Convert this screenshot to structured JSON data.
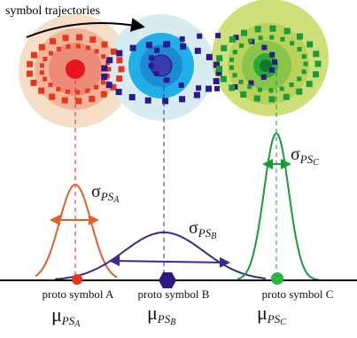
{
  "title": "symbol trajectories",
  "clusters": [
    {
      "label": "proto symbol A",
      "mean_symbol": "μ",
      "spread_symbol": "σ",
      "subscript": "PS",
      "index": "A"
    },
    {
      "label": "proto symbol B",
      "mean_symbol": "μ",
      "spread_symbol": "σ",
      "subscript": "PS",
      "index": "B"
    },
    {
      "label": "proto symbol C",
      "mean_symbol": "μ",
      "spread_symbol": "σ",
      "subscript": "PS",
      "index": "C"
    }
  ]
}
